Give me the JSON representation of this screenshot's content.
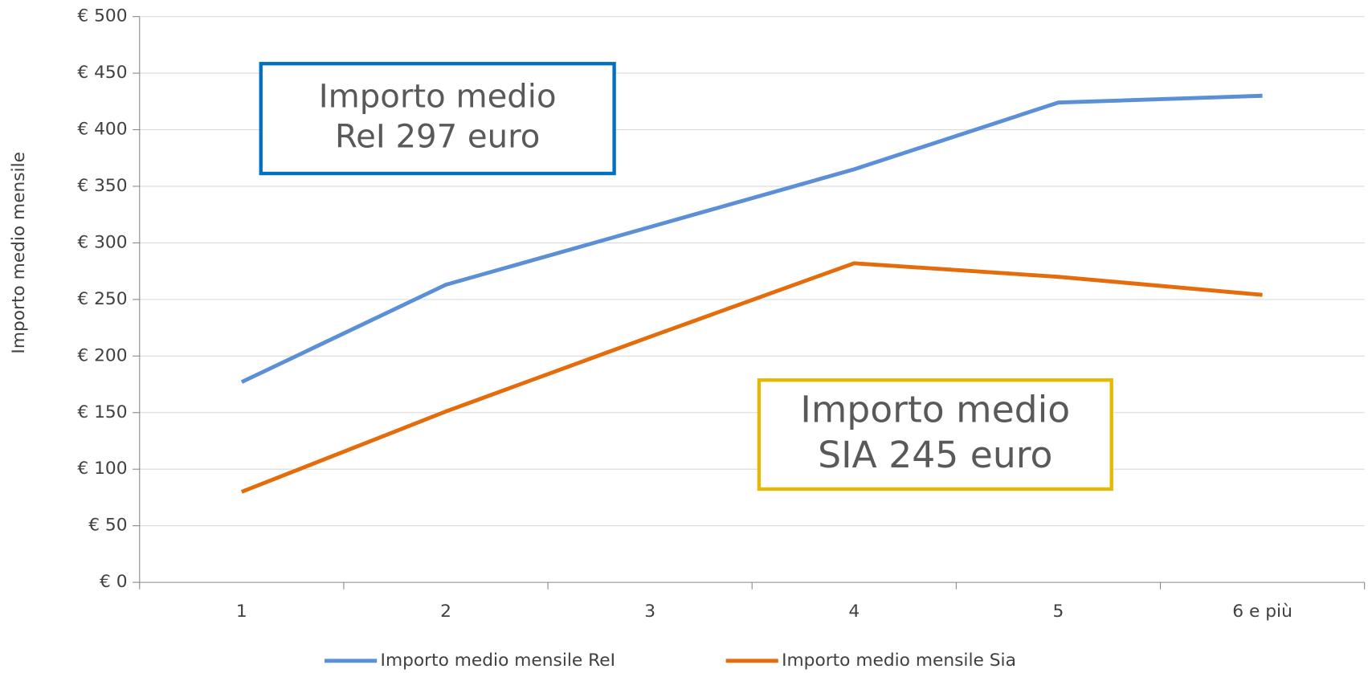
{
  "chart_data": {
    "type": "line",
    "y_label": "Importo medio mensile",
    "categories": [
      "1",
      "2",
      "3",
      "4",
      "5",
      "6 e più"
    ],
    "series": [
      {
        "name": "Importo medio mensile ReI",
        "color": "#5b8fd6",
        "values": [
          177,
          263,
          314,
          365,
          424,
          430
        ]
      },
      {
        "name": "Importo medio mensile Sia",
        "color": "#e46c0a",
        "values": [
          80,
          151,
          217,
          282,
          270,
          254
        ]
      }
    ],
    "ylim": [
      0,
      500
    ],
    "yticks": [
      {
        "value": 0,
        "label": "€ 0"
      },
      {
        "value": 50,
        "label": "€ 50"
      },
      {
        "value": 100,
        "label": "€ 100"
      },
      {
        "value": 150,
        "label": "€ 150"
      },
      {
        "value": 200,
        "label": "€ 200"
      },
      {
        "value": 250,
        "label": "€ 250"
      },
      {
        "value": 300,
        "label": "€ 300"
      },
      {
        "value": 350,
        "label": "€ 350"
      },
      {
        "value": 400,
        "label": "€ 400"
      },
      {
        "value": 450,
        "label": "€ 450"
      },
      {
        "value": 500,
        "label": "€ 500"
      }
    ],
    "grid": true,
    "legend": "bottom",
    "annotations": [
      {
        "lines": [
          "Importo medio",
          "ReI 297 euro"
        ],
        "color": "#0070c0"
      },
      {
        "lines": [
          "Importo medio",
          "SIA 245 euro"
        ],
        "color": "#e6b800"
      }
    ]
  }
}
